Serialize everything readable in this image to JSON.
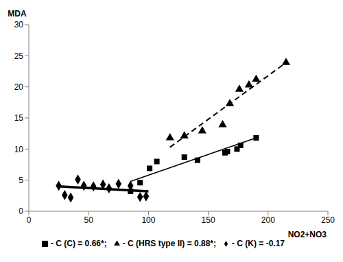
{
  "chart_data": {
    "type": "scatter",
    "x_label": "NO2+NO3",
    "y_label": "MDA",
    "xlim": [
      0,
      250
    ],
    "xticks": [
      0,
      50,
      100,
      150,
      200,
      250
    ],
    "ylim": [
      0,
      30
    ],
    "yticks": [
      0,
      5,
      10,
      15,
      20,
      25,
      30
    ],
    "grid": false,
    "legend": "bottom",
    "series": [
      {
        "name": "- C (HRS type II) = 0.88*;",
        "color": "#000000",
        "marker": "triangle",
        "line_style": "dashed",
        "x": [
          118,
          130,
          145,
          162,
          168,
          176,
          184,
          190,
          215
        ],
        "values": [
          11.8,
          12.1,
          12.9,
          13.9,
          17.3,
          19.6,
          20.3,
          21.2,
          23.9
        ],
        "trendline": {
          "x": [
            118,
            215
          ],
          "values": [
            10.3,
            23.9
          ]
        }
      },
      {
        "name": "- C (C) = 0.66*;",
        "color": "#000000",
        "marker": "square",
        "line_style": "solid",
        "x": [
          85,
          93,
          101,
          107,
          130,
          141,
          164,
          166,
          174,
          177,
          190
        ],
        "values": [
          3.2,
          4.6,
          6.9,
          8.0,
          8.7,
          8.2,
          9.4,
          9.6,
          10.0,
          10.6,
          11.8
        ],
        "trendline": {
          "x": [
            85,
            190
          ],
          "values": [
            4.8,
            11.8
          ]
        }
      },
      {
        "name": "- C (K) = -0.17",
        "color": "#000000",
        "marker": "diamond",
        "line_style": "thick",
        "x": [
          25,
          30,
          35,
          41,
          46,
          54,
          62,
          67,
          75,
          85,
          93,
          98
        ],
        "values": [
          4.1,
          2.6,
          2.2,
          5.1,
          4.1,
          4.0,
          4.3,
          3.7,
          4.4,
          4.1,
          2.3,
          2.4
        ],
        "trendline": {
          "x": [
            25,
            100
          ],
          "values": [
            4.0,
            3.2
          ]
        }
      }
    ]
  }
}
